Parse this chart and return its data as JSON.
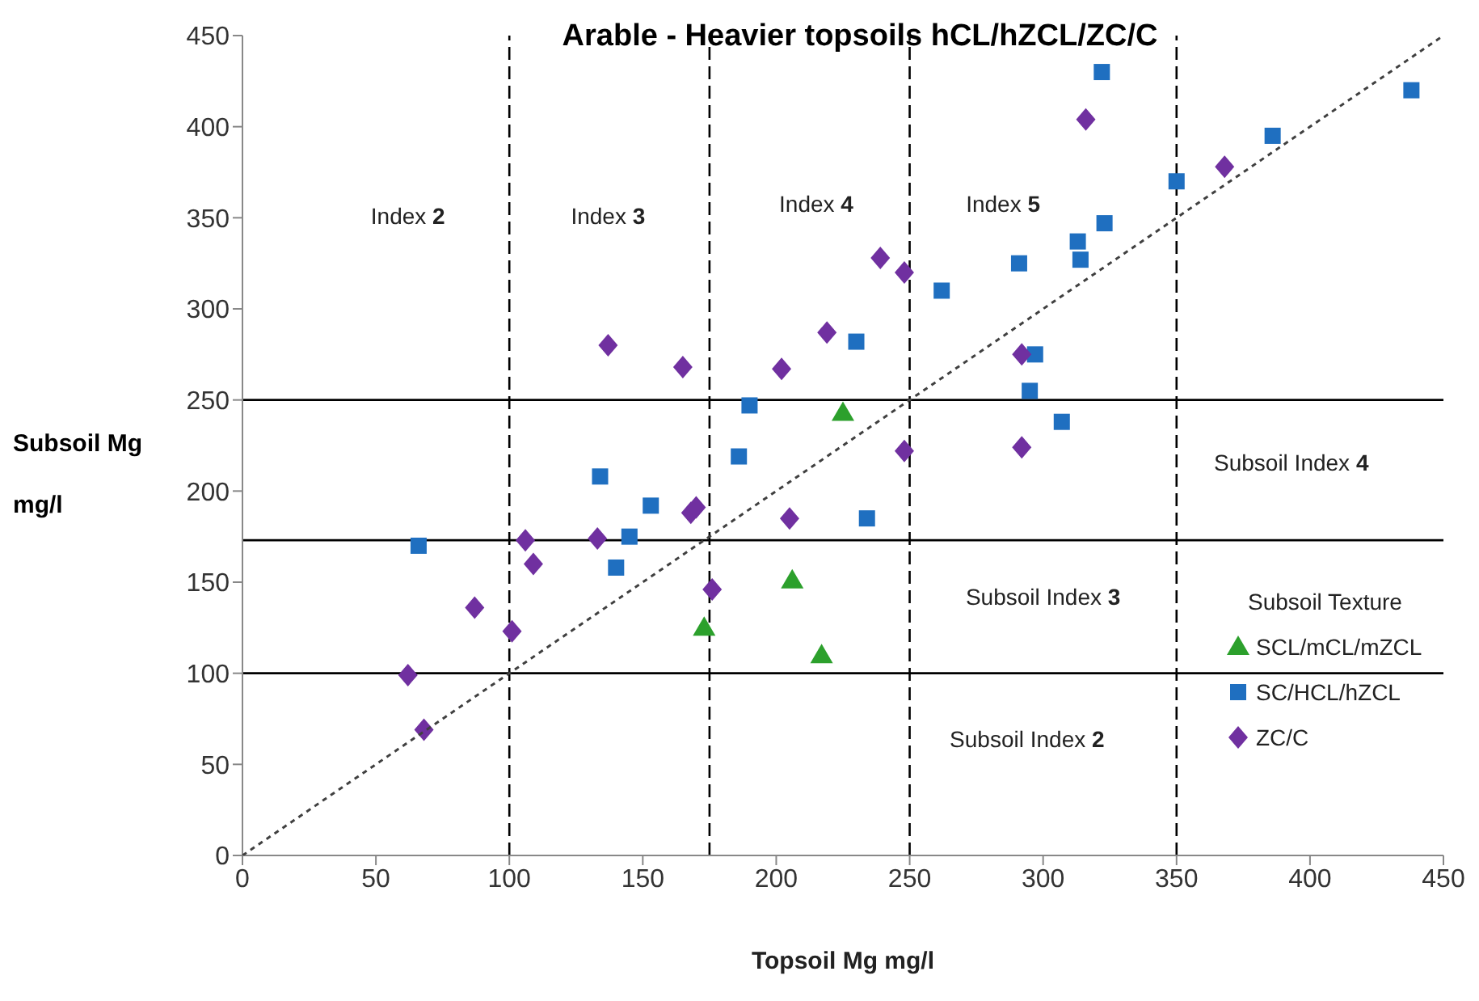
{
  "chart_data": {
    "type": "scatter",
    "title": "Arable - Heavier topsoils hCL/hZCL/ZC/C",
    "xlabel": "Topsoil Mg mg/l",
    "ylabel": "Subsoil Mg mg/l",
    "legend_title": "Subsoil Texture",
    "xlim": [
      0,
      450
    ],
    "xticks": [
      0,
      50,
      100,
      150,
      200,
      250,
      300,
      350,
      400,
      450
    ],
    "ylim": [
      0,
      450
    ],
    "yticks": [
      0,
      50,
      100,
      150,
      200,
      250,
      300,
      350,
      400,
      450
    ],
    "grid": false,
    "legend": "bottom right",
    "series": [
      {
        "name": "SCL/mCL/mZCL",
        "color": "#2ca02c",
        "marker": "triangle",
        "x": [
          225,
          206,
          173,
          217
        ],
        "values": [
          243,
          151,
          125,
          110
        ]
      },
      {
        "name": "SC/HCL/hZCL",
        "color": "#1f6fc0",
        "marker": "square",
        "x": [
          66,
          134,
          153,
          140,
          145,
          186,
          190,
          322,
          438,
          386,
          350,
          323,
          313,
          314,
          291,
          262,
          230,
          297,
          295,
          307,
          234
        ],
        "values": [
          170,
          208,
          192,
          158,
          175,
          219,
          247,
          430,
          420,
          395,
          370,
          347,
          337,
          327,
          325,
          310,
          282,
          275,
          255,
          238,
          185
        ]
      },
      {
        "name": "ZC/C",
        "color": "#7030a0",
        "marker": "diamond",
        "x": [
          137,
          165,
          106,
          109,
          133,
          168,
          170,
          176,
          87,
          101,
          62,
          68,
          316,
          368,
          239,
          248,
          219,
          202,
          292,
          248,
          292,
          205
        ],
        "values": [
          280,
          268,
          173,
          160,
          174,
          188,
          191,
          146,
          136,
          123,
          99,
          69,
          404,
          378,
          328,
          320,
          287,
          267,
          275,
          222,
          224,
          185
        ]
      },
      {
        "type": "line",
        "color": "#404040",
        "marker": "none",
        "line_style": "dotted",
        "x": [
          0,
          450
        ],
        "values": [
          0,
          450
        ]
      }
    ],
    "ref_lines": [
      {
        "axis": "x",
        "value": 100,
        "line_style": "dashed",
        "color": "#000000"
      },
      {
        "axis": "x",
        "value": 175,
        "line_style": "dashed",
        "color": "#000000"
      },
      {
        "axis": "x",
        "value": 250,
        "line_style": "dashed",
        "color": "#000000"
      },
      {
        "axis": "x",
        "value": 350,
        "line_style": "dashed",
        "color": "#000000"
      },
      {
        "axis": "y",
        "value": 250,
        "line_style": "solid",
        "color": "#000000"
      },
      {
        "axis": "y",
        "value": 173,
        "line_style": "solid",
        "color": "#000000"
      },
      {
        "axis": "y",
        "value": 100,
        "line_style": "solid",
        "color": "#000000"
      }
    ],
    "annotations": [
      "Index 2",
      "Index 3",
      "Index 4",
      "Index 5",
      "Subsoil Index 4",
      "Subsoil Index 3",
      "Subsoil Index 2"
    ]
  }
}
